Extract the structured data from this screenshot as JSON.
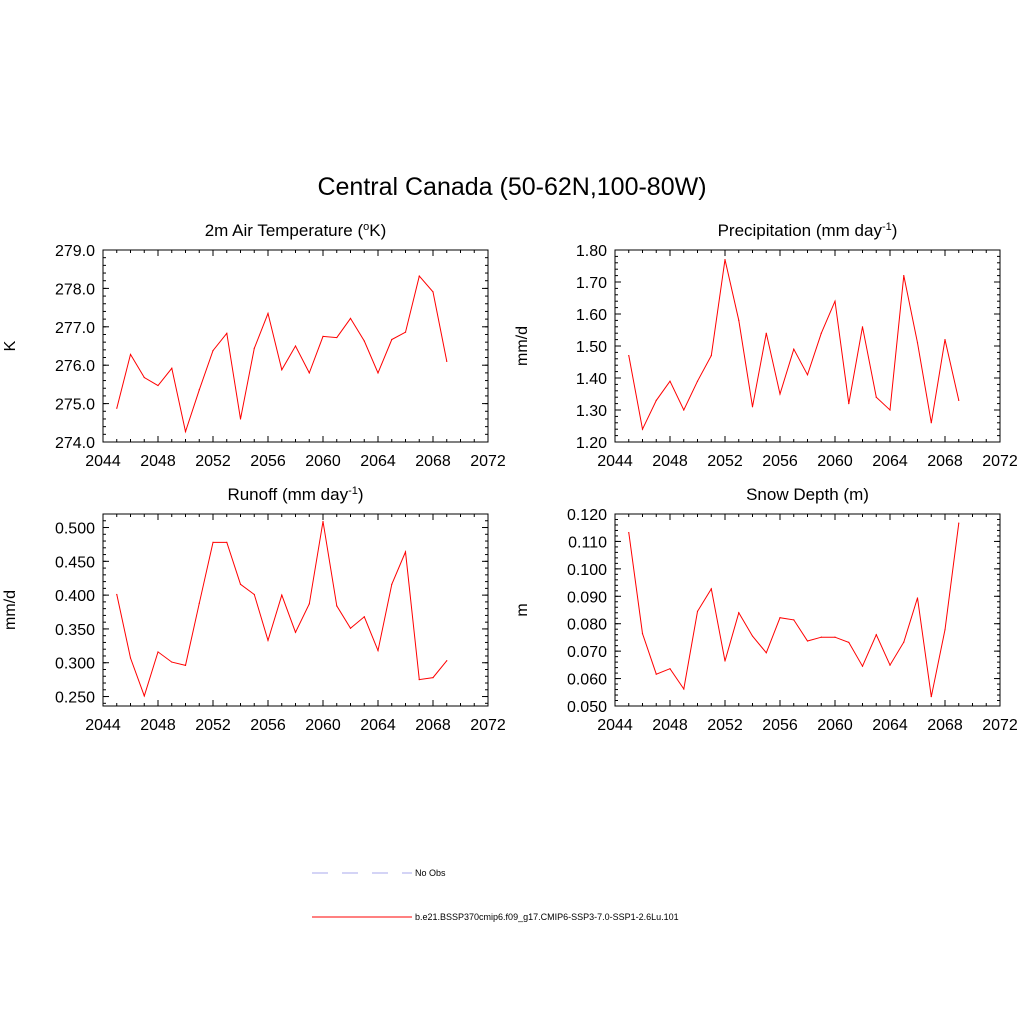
{
  "title": "Central Canada (50-62N,100-80W)",
  "colors": {
    "model": "#ff0000",
    "obs": "#aaaaee",
    "axis": "#000000"
  },
  "legend": {
    "entries": [
      {
        "label": "No Obs",
        "style": "dashed",
        "color": "#aaaaee"
      },
      {
        "label": "b.e21.BSSP370cmip6.f09_g17.CMIP6-SSP3-7.0-SSP1-2.6Lu.101",
        "style": "solid",
        "color": "#ff0000"
      }
    ]
  },
  "chart_data": [
    {
      "type": "line",
      "title": "2m Air Temperature (",
      "title_sup": "o",
      "title_after": "K)",
      "ylabel": "K",
      "xlim": [
        2044,
        2072
      ],
      "ylim": [
        274.0,
        279.0
      ],
      "xticks": [
        "2044",
        "2048",
        "2052",
        "2056",
        "2060",
        "2064",
        "2068",
        "2072"
      ],
      "yticks": [
        "274.0",
        "275.0",
        "276.0",
        "277.0",
        "278.0",
        "279.0"
      ],
      "series": [
        {
          "x": [
            2045,
            2046,
            2047,
            2048,
            2049,
            2050,
            2051,
            2052,
            2053,
            2054,
            2055,
            2056,
            2057,
            2058,
            2059,
            2060,
            2061,
            2062,
            2063,
            2064,
            2065,
            2066,
            2067,
            2068,
            2069
          ],
          "values": [
            274.88,
            276.28,
            275.68,
            275.47,
            275.92,
            274.27,
            275.36,
            276.38,
            276.83,
            274.6,
            276.44,
            277.35,
            275.88,
            276.5,
            275.8,
            276.75,
            276.72,
            277.22,
            276.63,
            275.8,
            276.67,
            276.86,
            278.32,
            277.91,
            276.1
          ]
        }
      ]
    },
    {
      "type": "line",
      "title": "Precipitation (mm day",
      "title_sup": "-1",
      "title_after": ")",
      "ylabel": "mm/d",
      "xlim": [
        2044,
        2072
      ],
      "ylim": [
        1.2,
        1.8
      ],
      "xticks": [
        "2044",
        "2048",
        "2052",
        "2056",
        "2060",
        "2064",
        "2068",
        "2072"
      ],
      "yticks": [
        "1.20",
        "1.30",
        "1.40",
        "1.50",
        "1.60",
        "1.70",
        "1.80"
      ],
      "series": [
        {
          "x": [
            2045,
            2046,
            2047,
            2048,
            2049,
            2050,
            2051,
            2052,
            2053,
            2054,
            2055,
            2056,
            2057,
            2058,
            2059,
            2060,
            2061,
            2062,
            2063,
            2064,
            2065,
            2066,
            2067,
            2068,
            2069
          ],
          "values": [
            1.47,
            1.24,
            1.33,
            1.39,
            1.3,
            1.39,
            1.47,
            1.77,
            1.58,
            1.31,
            1.54,
            1.35,
            1.49,
            1.41,
            1.54,
            1.64,
            1.32,
            1.56,
            1.34,
            1.3,
            1.72,
            1.51,
            1.26,
            1.52,
            1.33
          ]
        }
      ]
    },
    {
      "type": "line",
      "title": "Runoff (mm day",
      "title_sup": "-1",
      "title_after": ")",
      "ylabel": "mm/d",
      "xlim": [
        2044,
        2072
      ],
      "ylim": [
        0.236,
        0.52
      ],
      "xticks": [
        "2044",
        "2048",
        "2052",
        "2056",
        "2060",
        "2064",
        "2068",
        "2072"
      ],
      "yticks": [
        "0.250",
        "0.300",
        "0.350",
        "0.400",
        "0.450",
        "0.500"
      ],
      "series": [
        {
          "x": [
            2045,
            2046,
            2047,
            2048,
            2049,
            2050,
            2051,
            2052,
            2053,
            2054,
            2055,
            2056,
            2057,
            2058,
            2059,
            2060,
            2061,
            2062,
            2063,
            2064,
            2065,
            2066,
            2067,
            2068,
            2069
          ],
          "values": [
            0.401,
            0.307,
            0.251,
            0.316,
            0.301,
            0.296,
            0.388,
            0.478,
            0.478,
            0.416,
            0.401,
            0.333,
            0.4,
            0.345,
            0.387,
            0.509,
            0.384,
            0.351,
            0.368,
            0.318,
            0.416,
            0.464,
            0.275,
            0.278,
            0.303
          ]
        }
      ]
    },
    {
      "type": "line",
      "title": "Snow Depth (m)",
      "title_sup": "",
      "title_after": "",
      "ylabel": "m",
      "xlim": [
        2044,
        2072
      ],
      "ylim": [
        0.05,
        0.12
      ],
      "xticks": [
        "2044",
        "2048",
        "2052",
        "2056",
        "2060",
        "2064",
        "2068",
        "2072"
      ],
      "yticks": [
        "0.050",
        "0.060",
        "0.070",
        "0.080",
        "0.090",
        "0.100",
        "0.110",
        "0.120"
      ],
      "series": [
        {
          "x": [
            2045,
            2046,
            2047,
            2048,
            2049,
            2050,
            2051,
            2052,
            2053,
            2054,
            2055,
            2056,
            2057,
            2058,
            2059,
            2060,
            2061,
            2062,
            2063,
            2064,
            2065,
            2066,
            2067,
            2068,
            2069
          ],
          "values": [
            0.1132,
            0.0764,
            0.0616,
            0.0636,
            0.0562,
            0.0845,
            0.0927,
            0.0664,
            0.084,
            0.0755,
            0.0694,
            0.0822,
            0.0814,
            0.0737,
            0.0751,
            0.0751,
            0.0732,
            0.0645,
            0.076,
            0.0649,
            0.0733,
            0.0894,
            0.0534,
            0.0778,
            0.1167
          ]
        }
      ]
    }
  ]
}
